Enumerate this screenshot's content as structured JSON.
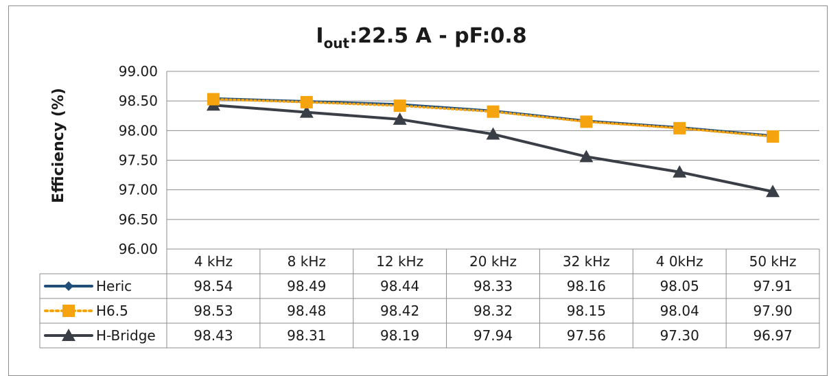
{
  "chart_data": {
    "type": "line",
    "title_main": "I",
    "title_sub": "out",
    "title_rest": ":22.5 A - pF:0.8",
    "ylabel": "Efficiency (%)",
    "xlabel": "",
    "ylim": [
      96.0,
      99.0
    ],
    "y_ticks": [
      "99.00",
      "98.50",
      "98.00",
      "97.50",
      "97.00",
      "96.50",
      "96.00"
    ],
    "categories": [
      "4 kHz",
      "8 kHz",
      "12 kHz",
      "20 kHz",
      "32 kHz",
      "4 0kHz",
      "50 kHz"
    ],
    "grid": true,
    "legend": "data-table",
    "series": [
      {
        "name": "Heric",
        "values": [
          98.54,
          98.49,
          98.44,
          98.33,
          98.16,
          98.05,
          97.91
        ],
        "labels": [
          "98.54",
          "98.49",
          "98.44",
          "98.33",
          "98.16",
          "98.05",
          "97.91"
        ],
        "color": "#1f4e79",
        "marker": "diamond",
        "dash": "solid"
      },
      {
        "name": "H6.5",
        "values": [
          98.53,
          98.48,
          98.42,
          98.32,
          98.15,
          98.04,
          97.9
        ],
        "labels": [
          "98.53",
          "98.48",
          "98.42",
          "98.32",
          "98.15",
          "98.04",
          "97.90"
        ],
        "color": "#f5a40f",
        "marker": "square",
        "dash": "dotted"
      },
      {
        "name": "H-Bridge",
        "values": [
          98.43,
          98.31,
          98.19,
          97.94,
          97.56,
          97.3,
          96.97
        ],
        "labels": [
          "98.43",
          "98.31",
          "98.19",
          "97.94",
          "97.56",
          "97.30",
          "96.97"
        ],
        "color": "#3a3f47",
        "marker": "triangle",
        "dash": "solid"
      }
    ]
  }
}
